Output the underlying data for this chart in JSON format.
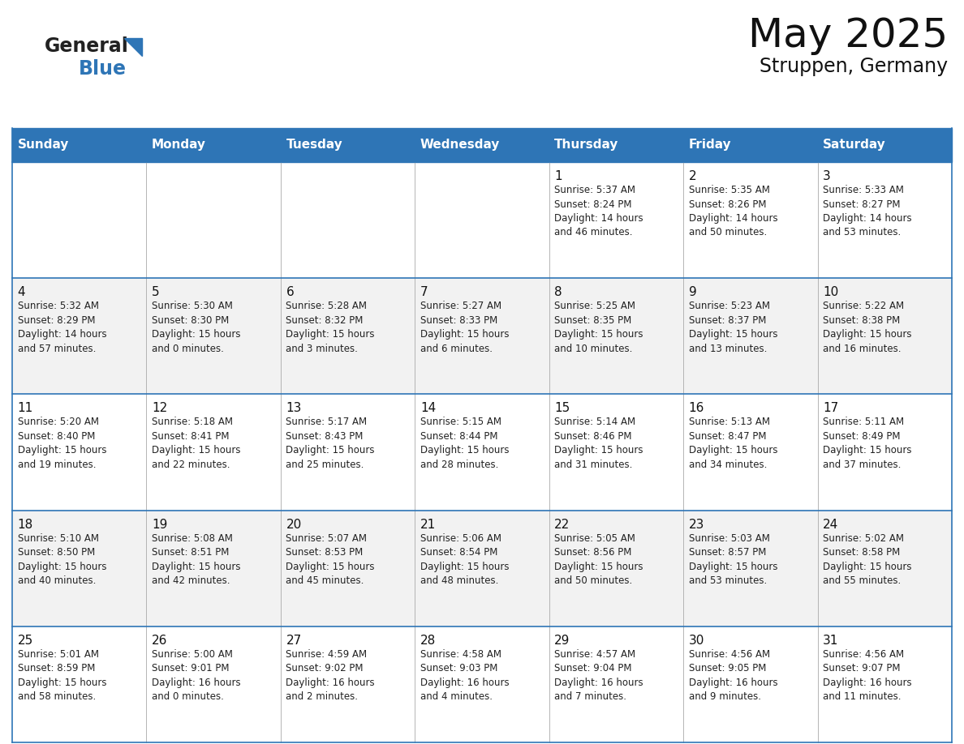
{
  "title": "May 2025",
  "subtitle": "Struppen, Germany",
  "header_bg": "#2E75B6",
  "header_text_color": "#FFFFFF",
  "row_bg": "#FFFFFF",
  "row_bg_alt": "#F2F2F2",
  "cell_border_color": "#2E75B6",
  "day_headers": [
    "Sunday",
    "Monday",
    "Tuesday",
    "Wednesday",
    "Thursday",
    "Friday",
    "Saturday"
  ],
  "weeks": [
    [
      {
        "day": "",
        "info": ""
      },
      {
        "day": "",
        "info": ""
      },
      {
        "day": "",
        "info": ""
      },
      {
        "day": "",
        "info": ""
      },
      {
        "day": "1",
        "info": "Sunrise: 5:37 AM\nSunset: 8:24 PM\nDaylight: 14 hours\nand 46 minutes."
      },
      {
        "day": "2",
        "info": "Sunrise: 5:35 AM\nSunset: 8:26 PM\nDaylight: 14 hours\nand 50 minutes."
      },
      {
        "day": "3",
        "info": "Sunrise: 5:33 AM\nSunset: 8:27 PM\nDaylight: 14 hours\nand 53 minutes."
      }
    ],
    [
      {
        "day": "4",
        "info": "Sunrise: 5:32 AM\nSunset: 8:29 PM\nDaylight: 14 hours\nand 57 minutes."
      },
      {
        "day": "5",
        "info": "Sunrise: 5:30 AM\nSunset: 8:30 PM\nDaylight: 15 hours\nand 0 minutes."
      },
      {
        "day": "6",
        "info": "Sunrise: 5:28 AM\nSunset: 8:32 PM\nDaylight: 15 hours\nand 3 minutes."
      },
      {
        "day": "7",
        "info": "Sunrise: 5:27 AM\nSunset: 8:33 PM\nDaylight: 15 hours\nand 6 minutes."
      },
      {
        "day": "8",
        "info": "Sunrise: 5:25 AM\nSunset: 8:35 PM\nDaylight: 15 hours\nand 10 minutes."
      },
      {
        "day": "9",
        "info": "Sunrise: 5:23 AM\nSunset: 8:37 PM\nDaylight: 15 hours\nand 13 minutes."
      },
      {
        "day": "10",
        "info": "Sunrise: 5:22 AM\nSunset: 8:38 PM\nDaylight: 15 hours\nand 16 minutes."
      }
    ],
    [
      {
        "day": "11",
        "info": "Sunrise: 5:20 AM\nSunset: 8:40 PM\nDaylight: 15 hours\nand 19 minutes."
      },
      {
        "day": "12",
        "info": "Sunrise: 5:18 AM\nSunset: 8:41 PM\nDaylight: 15 hours\nand 22 minutes."
      },
      {
        "day": "13",
        "info": "Sunrise: 5:17 AM\nSunset: 8:43 PM\nDaylight: 15 hours\nand 25 minutes."
      },
      {
        "day": "14",
        "info": "Sunrise: 5:15 AM\nSunset: 8:44 PM\nDaylight: 15 hours\nand 28 minutes."
      },
      {
        "day": "15",
        "info": "Sunrise: 5:14 AM\nSunset: 8:46 PM\nDaylight: 15 hours\nand 31 minutes."
      },
      {
        "day": "16",
        "info": "Sunrise: 5:13 AM\nSunset: 8:47 PM\nDaylight: 15 hours\nand 34 minutes."
      },
      {
        "day": "17",
        "info": "Sunrise: 5:11 AM\nSunset: 8:49 PM\nDaylight: 15 hours\nand 37 minutes."
      }
    ],
    [
      {
        "day": "18",
        "info": "Sunrise: 5:10 AM\nSunset: 8:50 PM\nDaylight: 15 hours\nand 40 minutes."
      },
      {
        "day": "19",
        "info": "Sunrise: 5:08 AM\nSunset: 8:51 PM\nDaylight: 15 hours\nand 42 minutes."
      },
      {
        "day": "20",
        "info": "Sunrise: 5:07 AM\nSunset: 8:53 PM\nDaylight: 15 hours\nand 45 minutes."
      },
      {
        "day": "21",
        "info": "Sunrise: 5:06 AM\nSunset: 8:54 PM\nDaylight: 15 hours\nand 48 minutes."
      },
      {
        "day": "22",
        "info": "Sunrise: 5:05 AM\nSunset: 8:56 PM\nDaylight: 15 hours\nand 50 minutes."
      },
      {
        "day": "23",
        "info": "Sunrise: 5:03 AM\nSunset: 8:57 PM\nDaylight: 15 hours\nand 53 minutes."
      },
      {
        "day": "24",
        "info": "Sunrise: 5:02 AM\nSunset: 8:58 PM\nDaylight: 15 hours\nand 55 minutes."
      }
    ],
    [
      {
        "day": "25",
        "info": "Sunrise: 5:01 AM\nSunset: 8:59 PM\nDaylight: 15 hours\nand 58 minutes."
      },
      {
        "day": "26",
        "info": "Sunrise: 5:00 AM\nSunset: 9:01 PM\nDaylight: 16 hours\nand 0 minutes."
      },
      {
        "day": "27",
        "info": "Sunrise: 4:59 AM\nSunset: 9:02 PM\nDaylight: 16 hours\nand 2 minutes."
      },
      {
        "day": "28",
        "info": "Sunrise: 4:58 AM\nSunset: 9:03 PM\nDaylight: 16 hours\nand 4 minutes."
      },
      {
        "day": "29",
        "info": "Sunrise: 4:57 AM\nSunset: 9:04 PM\nDaylight: 16 hours\nand 7 minutes."
      },
      {
        "day": "30",
        "info": "Sunrise: 4:56 AM\nSunset: 9:05 PM\nDaylight: 16 hours\nand 9 minutes."
      },
      {
        "day": "31",
        "info": "Sunrise: 4:56 AM\nSunset: 9:07 PM\nDaylight: 16 hours\nand 11 minutes."
      }
    ]
  ],
  "logo_text_general": "General",
  "logo_text_blue": "Blue",
  "logo_color_general": "#222222",
  "logo_color_blue": "#2E75B6",
  "logo_triangle_color": "#2E75B6",
  "title_fontsize": 36,
  "subtitle_fontsize": 17,
  "header_fontsize": 11,
  "day_num_fontsize": 11,
  "info_fontsize": 8.5
}
